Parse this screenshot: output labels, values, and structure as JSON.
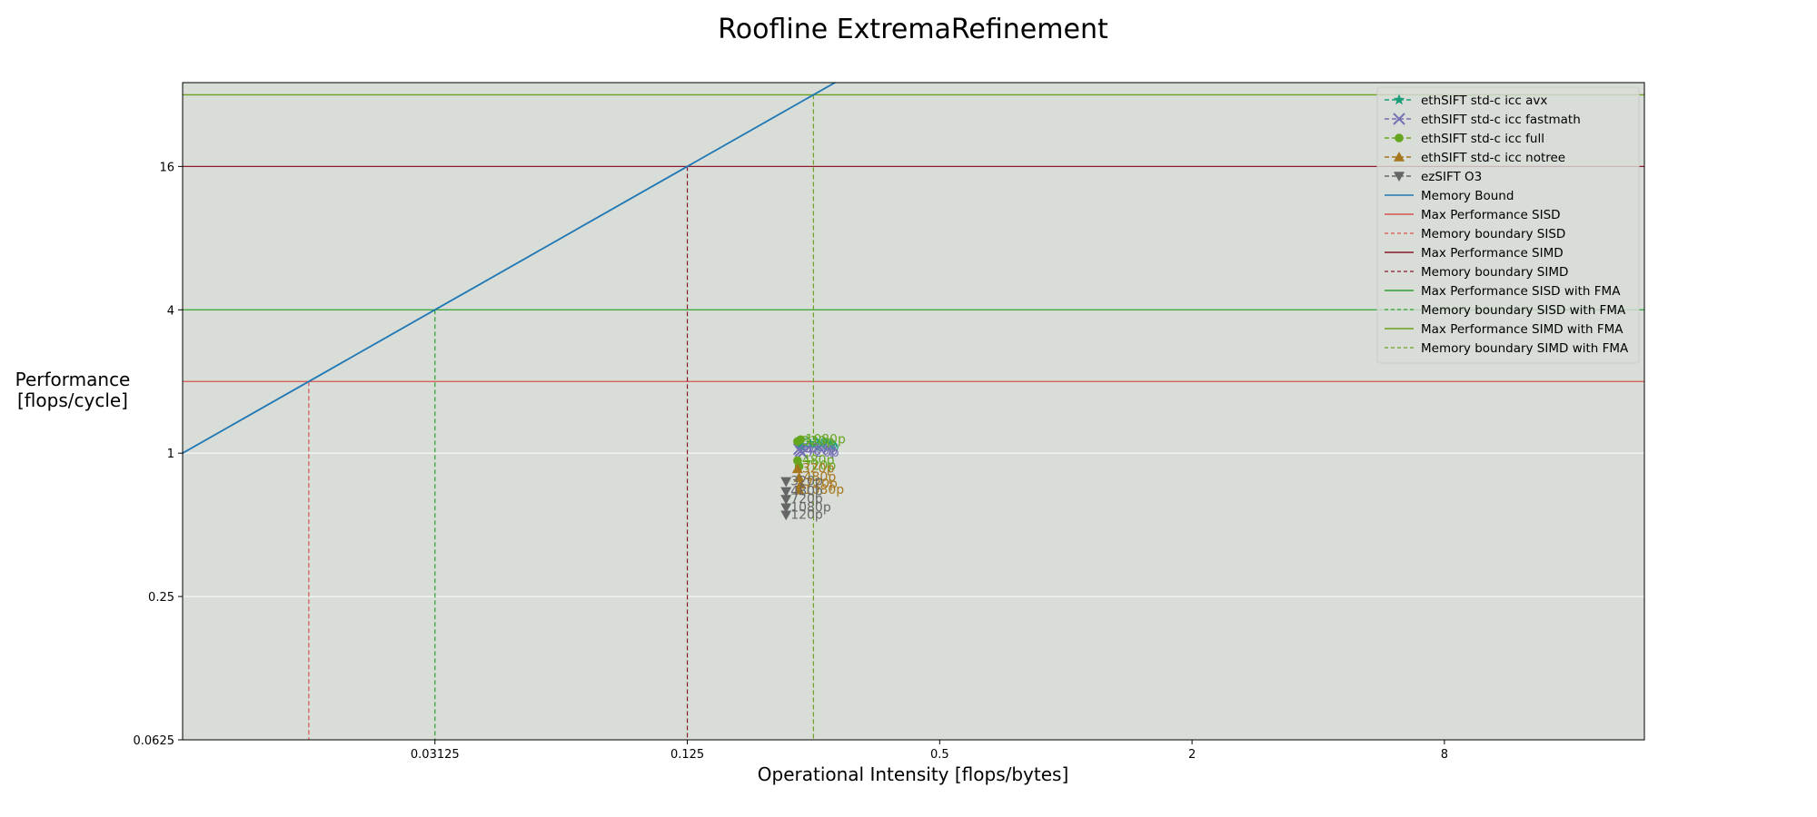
{
  "chart_data": {
    "type": "line",
    "title": "Roofline ExtremaRefinement",
    "xlabel": "Operational Intensity [flops/bytes]",
    "ylabel_line1": "Performance",
    "ylabel_line2": "[flops/cycle]",
    "x_scale": "log2",
    "y_scale": "log2",
    "xlim": [
      0.0078125,
      24
    ],
    "ylim": [
      0.0625,
      36
    ],
    "x_ticks": [
      0.03125,
      0.125,
      0.5,
      2,
      8
    ],
    "x_tick_labels": [
      "0.03125",
      "0.125",
      "0.5",
      "2",
      "8"
    ],
    "y_ticks": [
      0.0625,
      0.25,
      1,
      4,
      16
    ],
    "y_tick_labels": [
      "0.0625",
      "0.25",
      "1",
      "4",
      "16"
    ],
    "background": "#d8ddd8",
    "memory_bound": {
      "name": "Memory Bound",
      "bandwidth": 128,
      "color": "#1f77b4"
    },
    "rooflines": [
      {
        "name": "Max Performance SISD",
        "performance": 2,
        "color": "#d9534f",
        "boundary_name": "Memory boundary SISD"
      },
      {
        "name": "Max Performance SIMD",
        "performance": 16,
        "color": "#8b1a2b",
        "boundary_name": "Memory boundary SIMD"
      },
      {
        "name": "Max Performance SISD with FMA",
        "performance": 4,
        "color": "#2ca02c",
        "boundary_name": "Memory boundary SISD with FMA"
      },
      {
        "name": "Max Performance SIMD with FMA",
        "performance": 32,
        "color": "#6aa121",
        "boundary_name": "Memory boundary SIMD with FMA"
      }
    ],
    "series": [
      {
        "name": "ethSIFT std-c icc avx",
        "marker": "star",
        "color": "#1b9e77",
        "points": [
          [
            0.231,
            1.1,
            "320p"
          ],
          [
            0.233,
            1.08,
            "480p"
          ],
          [
            0.235,
            1.06,
            "720p"
          ]
        ]
      },
      {
        "name": "ethSIFT std-c icc fastmath",
        "marker": "x",
        "color": "#7570b3",
        "points": [
          [
            0.231,
            1.04,
            "320p"
          ],
          [
            0.233,
            1.02,
            "480p"
          ],
          [
            0.235,
            1.0,
            "720p"
          ]
        ]
      },
      {
        "name": "ethSIFT std-c icc full",
        "marker": "circle",
        "color": "#66a61e",
        "points": [
          [
            0.229,
            1.12,
            "320p"
          ],
          [
            0.229,
            0.93,
            "480p"
          ],
          [
            0.231,
            0.88,
            "720p"
          ],
          [
            0.233,
            1.14,
            "1080p"
          ]
        ]
      },
      {
        "name": "ethSIFT std-c icc notree",
        "marker": "triangle-up",
        "color": "#a6761d",
        "points": [
          [
            0.229,
            0.86,
            "320p"
          ],
          [
            0.231,
            0.79,
            "480p"
          ],
          [
            0.233,
            0.74,
            "720p"
          ],
          [
            0.231,
            0.7,
            "1080p"
          ]
        ]
      },
      {
        "name": "ezSIFT O3",
        "marker": "triangle-down",
        "color": "#666666",
        "points": [
          [
            0.215,
            0.76,
            "320p"
          ],
          [
            0.215,
            0.69,
            "480p"
          ],
          [
            0.215,
            0.64,
            "720p"
          ],
          [
            0.215,
            0.59,
            "1080p"
          ],
          [
            0.215,
            0.55,
            "120p"
          ]
        ]
      }
    ],
    "legend_position": "top-right"
  }
}
